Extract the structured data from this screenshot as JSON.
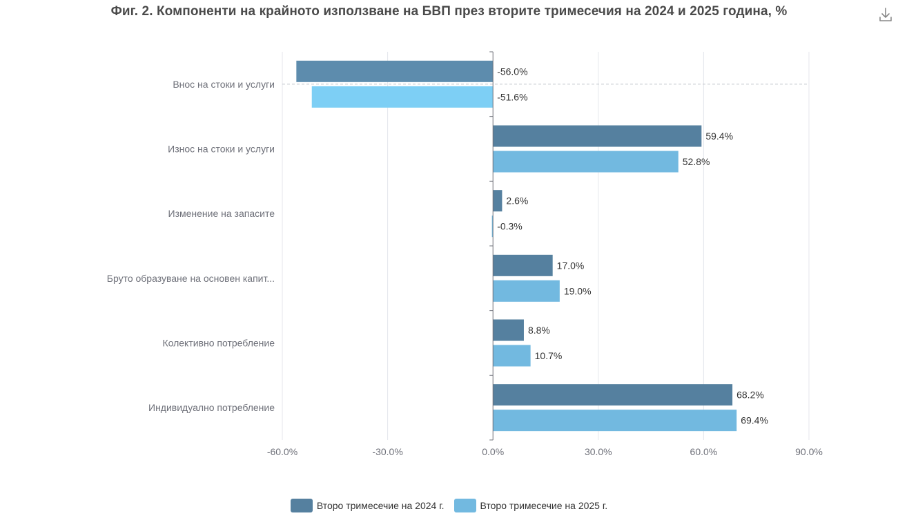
{
  "title": "Фиг. 2. Компоненти на крайното използване на БВП през вторите тримесечия на 2024 и 2025 година, %",
  "icons": {
    "download": "download-icon"
  },
  "chart_data": {
    "type": "bar",
    "orientation": "horizontal",
    "categories": [
      "Внос на стоки и услуги",
      "Износ на стоки и услуги",
      "Изменение на запасите",
      "Бруто образуване на основен капит...",
      "Колективно потребление",
      "Индивидуално потребление"
    ],
    "series": [
      {
        "name": "Второ тримесечие на 2024 г.",
        "color": "#55809f",
        "values": [
          -56.0,
          59.4,
          2.6,
          17.0,
          8.8,
          68.2
        ],
        "labels": [
          "-56.0%",
          "59.4%",
          "2.6%",
          "17.0%",
          "8.8%",
          "68.2%"
        ]
      },
      {
        "name": "Второ тримесечие на 2025 г.",
        "color": "#72b9e0",
        "values": [
          -51.6,
          52.8,
          -0.3,
          19.0,
          10.7,
          69.4
        ],
        "labels": [
          "-51.6%",
          "52.8%",
          "-0.3%",
          "19.0%",
          "10.7%",
          "69.4%"
        ]
      }
    ],
    "xlim": [
      -60,
      90
    ],
    "xticks": [
      -60,
      -30,
      0,
      30,
      60,
      90
    ],
    "xtick_labels": [
      "-60.0%",
      "-30.0%",
      "0.0%",
      "30.0%",
      "60.0%",
      "90.0%"
    ],
    "grid": true,
    "legend_position": "bottom-center",
    "highlighted_category_index": 0,
    "first_row_bar_colors": [
      "#5d8cad",
      "#7dcff5"
    ]
  }
}
